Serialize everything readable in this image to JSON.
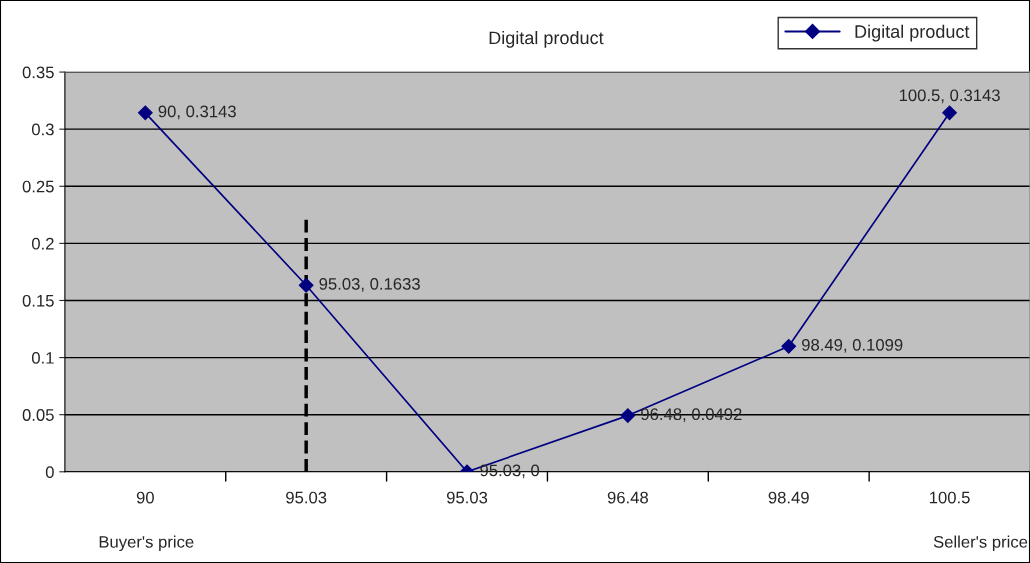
{
  "chart_data": {
    "type": "line",
    "title": "Digital product",
    "categories": [
      "90",
      "95.03",
      "95.03",
      "96.48",
      "98.49",
      "100.5"
    ],
    "series": [
      {
        "name": "Digital product",
        "color": "#000080",
        "values": [
          0.3143,
          0.1633,
          0,
          0.0492,
          0.1099,
          0.3143
        ],
        "value_labels": [
          "90, 0.3143",
          "95.03, 0.1633",
          "95.03, 0",
          "96.48, 0.0492",
          "98.49, 0.1099",
          "100.5, 0.3143"
        ]
      }
    ],
    "ylim": [
      0,
      0.35
    ],
    "yticks": [
      {
        "value": 0,
        "label": "0"
      },
      0.05,
      0.1,
      0.15,
      0.2,
      0.25,
      0.3,
      0.35
    ],
    "grid": "y",
    "legend": "top right",
    "marker": "diamond",
    "line_style": "solid",
    "ref_lines": [
      {
        "axis": "x",
        "value": "95.03",
        "color": "#000000",
        "line_style": "dashed"
      }
    ],
    "annotations": [
      "Buyer's price",
      "Seller's price"
    ]
  }
}
